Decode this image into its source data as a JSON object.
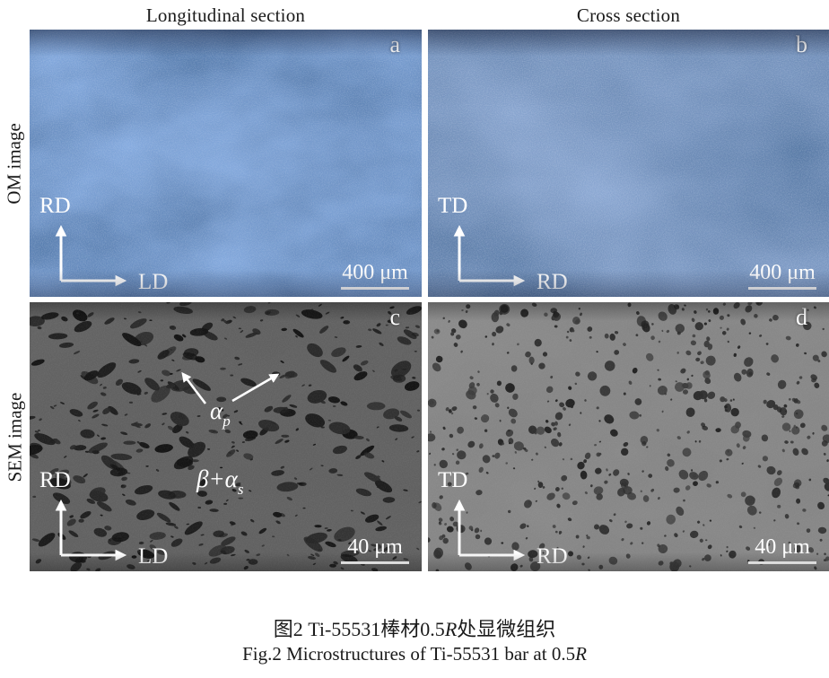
{
  "header": {
    "col_left": "Longitudinal section",
    "col_right": "Cross section",
    "row_top": "OM image",
    "row_bottom": "SEM image"
  },
  "panels": [
    {
      "letter": "a",
      "type": "OM",
      "v_label": "RD",
      "h_label": "LD",
      "scale": "400 μm"
    },
    {
      "letter": "b",
      "type": "OM",
      "v_label": "TD",
      "h_label": "RD",
      "scale": "400 μm"
    },
    {
      "letter": "c",
      "type": "SEM",
      "v_label": "RD",
      "h_label": "LD",
      "scale": "40 μm",
      "annotations": {
        "alpha_symbol": "α",
        "alpha_sub": "p",
        "matrix_symbol": "β+α",
        "matrix_sub": "s"
      }
    },
    {
      "letter": "d",
      "type": "SEM",
      "v_label": "TD",
      "h_label": "RD",
      "scale": "40 μm"
    }
  ],
  "caption": {
    "zh_prefix": "图2  Ti-55531棒材0.5",
    "zh_italic": "R",
    "zh_suffix": "处显微组织",
    "en_prefix": "Fig.2  Microstructures of Ti-55531 bar at 0.5",
    "en_italic": "R"
  },
  "colors": {
    "om_base": "#33508e",
    "sem_base_c": "#646464",
    "sem_base_d": "#8c8c8c",
    "annotation": "#ffffff"
  }
}
